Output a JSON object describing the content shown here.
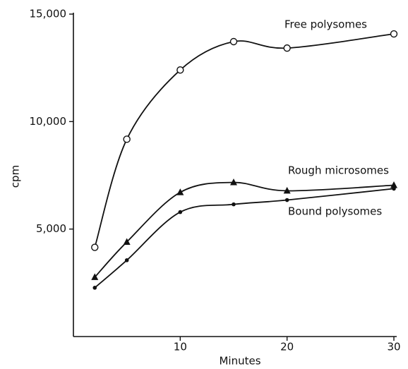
{
  "chart_data": {
    "type": "line",
    "x_label": "Minutes",
    "y_label": "cpm",
    "x": [
      2,
      5,
      10,
      15,
      20,
      30
    ],
    "series": [
      {
        "name": "Free polysomes",
        "color": "#111111",
        "marker": "open-circle",
        "values": [
          4150,
          9180,
          12400,
          13720,
          13420,
          14080
        ]
      },
      {
        "name": "Rough microsomes",
        "color": "#111111",
        "marker": "triangle",
        "values": [
          2760,
          4400,
          6710,
          7170,
          6780,
          7040
        ]
      },
      {
        "name": "Bound polysomes",
        "color": "#111111",
        "marker": "dot",
        "values": [
          2270,
          3550,
          5790,
          6150,
          6350,
          6880
        ]
      }
    ],
    "xlim": [
      0,
      30
    ],
    "ylim": [
      0,
      15000
    ],
    "xticks": [
      10,
      20,
      30
    ],
    "yticks": [
      {
        "value": 5000,
        "label": "5,000"
      },
      {
        "value": 10000,
        "label": "10,000"
      },
      {
        "value": 15000,
        "label": "15,000"
      }
    ],
    "grid": false
  }
}
